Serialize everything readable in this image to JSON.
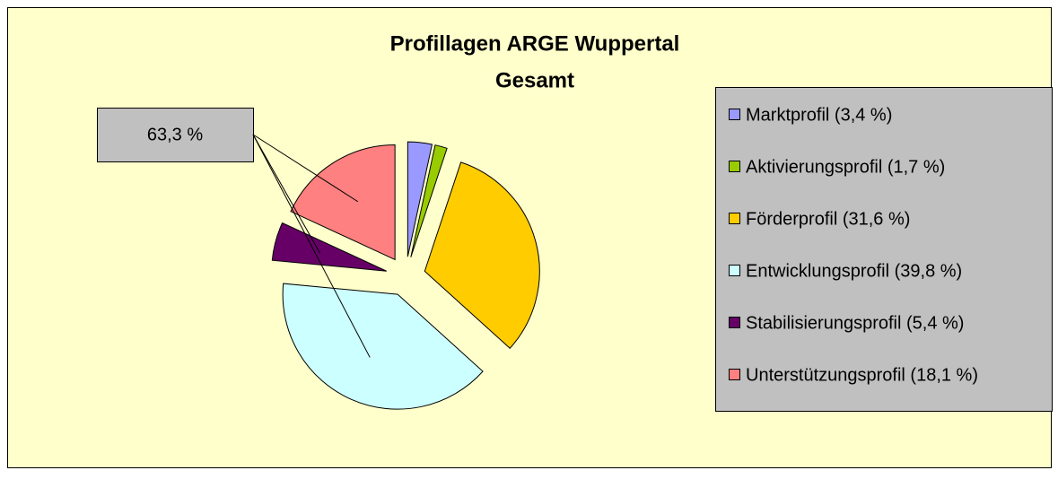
{
  "chart_data": {
    "type": "pie",
    "title": "Profillagen ARGE Wuppertal",
    "subtitle": "Gesamt",
    "annotation": "63,3 %",
    "series": [
      {
        "name": "Marktprofil (3,4 %)",
        "color": "#9999ff",
        "value": 3.4
      },
      {
        "name": "Aktivierungsprofil (1,7 %)",
        "color": "#99cc00",
        "value": 1.7
      },
      {
        "name": "Förderprofil (31,6 %)",
        "color": "#ffcc00",
        "value": 31.6
      },
      {
        "name": "Entwicklungsprofil (39,8 %)",
        "color": "#ccffff",
        "value": 39.8
      },
      {
        "name": "Stabilisierungsprofil (5,4 %)",
        "color": "#660066",
        "value": 5.4
      },
      {
        "name": "Unterstützungsprofil (18,1 %)",
        "color": "#ff8080",
        "value": 18.1
      }
    ],
    "legend": "right"
  }
}
